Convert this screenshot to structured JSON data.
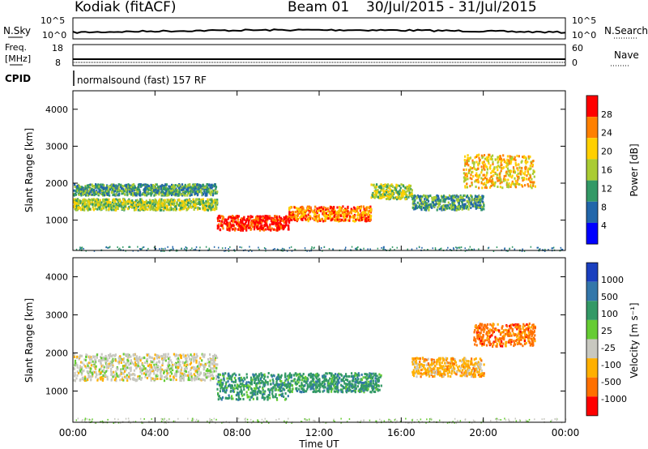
{
  "header": {
    "station": "Kodiak (fitACF)",
    "beam": "Beam 01",
    "dates": "30/Jul/2015 - 31/Jul/2015"
  },
  "panels": {
    "nsky_label": "N.Sky",
    "nsky_ticks": [
      "10^5",
      "10^0"
    ],
    "nsearch_label": "N.Search",
    "nsearch_ticks": [
      "10^5",
      "10^0"
    ],
    "freq_label_1": "Freq.",
    "freq_label_2": "[MHz]",
    "freq_ticks": [
      "18",
      "8"
    ],
    "nave_label": "Nave",
    "nave_ticks": [
      "60",
      "0"
    ],
    "cpid_label": "CPID",
    "cpid_text": "normalsound (fast) 157 RF"
  },
  "chart_data": [
    {
      "type": "heatmap",
      "panel": "power",
      "ylabel": "Slant Range [km]",
      "ylim": [
        180,
        4500
      ],
      "yticks": [
        "4000",
        "3000",
        "2000",
        "1000"
      ],
      "xlim_hours": [
        0,
        24
      ],
      "colorbar_label": "Power [dB]",
      "colorbar_ticks": [
        "28",
        "24",
        "20",
        "16",
        "12",
        "8",
        "4"
      ],
      "colorbar_colors": [
        "#ff0000",
        "#ff8000",
        "#ffd000",
        "#aacc33",
        "#339966",
        "#2266aa",
        "#0000ff"
      ],
      "echo_bands": [
        {
          "t_start": 0.0,
          "t_end": 7.0,
          "range_low": 1700,
          "range_high": 2000,
          "power_db": 12
        },
        {
          "t_start": 0.0,
          "t_end": 7.0,
          "range_low": 1300,
          "range_high": 1600,
          "power_db": 16
        },
        {
          "t_start": 7.0,
          "t_end": 10.5,
          "range_low": 750,
          "range_high": 1150,
          "power_db": 28
        },
        {
          "t_start": 10.5,
          "t_end": 14.5,
          "range_low": 1000,
          "range_high": 1400,
          "power_db": 24
        },
        {
          "t_start": 14.5,
          "t_end": 16.5,
          "range_low": 1600,
          "range_high": 2000,
          "power_db": 16
        },
        {
          "t_start": 16.5,
          "t_end": 20.0,
          "range_low": 1300,
          "range_high": 1700,
          "power_db": 12
        },
        {
          "t_start": 19.0,
          "t_end": 22.5,
          "range_low": 1900,
          "range_high": 2800,
          "power_db": 20
        }
      ]
    },
    {
      "type": "heatmap",
      "panel": "velocity",
      "ylabel": "Slant Range [km]",
      "ylim": [
        180,
        4500
      ],
      "yticks": [
        "4000",
        "3000",
        "2000",
        "1000"
      ],
      "xlim_hours": [
        0,
        24
      ],
      "colorbar_label": "Velocity [m s⁻¹]",
      "colorbar_ticks": [
        "1000",
        "500",
        "100",
        "25",
        "-25",
        "-100",
        "-500",
        "-1000"
      ],
      "colorbar_colors": [
        "#1a3fbf",
        "#3377aa",
        "#339966",
        "#66cc33",
        "#c8c8c0",
        "#ffb000",
        "#ff7000",
        "#ff0000"
      ],
      "echo_bands": [
        {
          "t_start": 0.0,
          "t_end": 7.0,
          "range_low": 1300,
          "range_high": 2000,
          "velocity": 0
        },
        {
          "t_start": 7.0,
          "t_end": 10.5,
          "range_low": 800,
          "range_high": 1500,
          "velocity": 100
        },
        {
          "t_start": 10.5,
          "t_end": 15.0,
          "range_low": 1000,
          "range_high": 1500,
          "velocity": 100
        },
        {
          "t_start": 16.5,
          "t_end": 20.0,
          "range_low": 1400,
          "range_high": 1900,
          "velocity": -100
        },
        {
          "t_start": 19.5,
          "t_end": 22.5,
          "range_low": 2200,
          "range_high": 2800,
          "velocity": -500
        }
      ]
    }
  ],
  "xaxis": {
    "ticks": [
      "00:00",
      "04:00",
      "08:00",
      "12:00",
      "16:00",
      "20:00",
      "00:00"
    ],
    "label": "Time UT"
  },
  "colors": {
    "frame": "#000000",
    "background": "#ffffff"
  }
}
